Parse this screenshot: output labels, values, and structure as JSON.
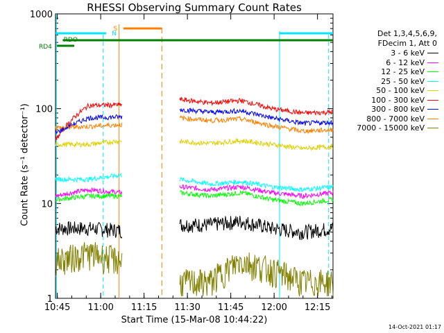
{
  "title": "RHESSI Observing Summary Count Rates",
  "xlabel": "Start Time (15-Mar-08 10:44:22)",
  "ylabel": "Count Rate (s⁻¹ detector⁻¹)",
  "timestamp": "14-Oct-2021 01:17",
  "legend_header": [
    "Det 1,3,4,5,6,9,",
    "FDecim 1, Att 0"
  ],
  "chart_data": {
    "type": "line",
    "title": "RHESSI Observing Summary Count Rates",
    "xlabel": "Start Time (15-Mar-08 10:44:22)",
    "ylabel": "Count Rate (s⁻¹ detector⁻¹)",
    "x_ticks": [
      "10:45",
      "11:00",
      "11:15",
      "11:30",
      "11:45",
      "12:00",
      "12:15"
    ],
    "y_ticks": [
      "1",
      "10",
      "100",
      "1000"
    ],
    "ylim": [
      1,
      1000
    ],
    "yscale": "log",
    "xlim_minutes_after_10_44_22": [
      0,
      96
    ],
    "flag_labels": [
      "RD4",
      "RDO",
      "N",
      "S"
    ],
    "series": [
      {
        "name": "3 - 6 keV",
        "color": "#000000",
        "seg1": [
          5.5,
          5.5,
          5.2
        ],
        "seg2": [
          6.0,
          6.0,
          6.5,
          5.5,
          5.0,
          5.5
        ]
      },
      {
        "name": "6 - 12 keV",
        "color": "#ff00ff",
        "seg1": [
          12,
          14,
          13
        ],
        "seg2": [
          15,
          14,
          15,
          13,
          12,
          13
        ]
      },
      {
        "name": "12 - 25 keV",
        "color": "#00ff00",
        "seg1": [
          11,
          12,
          12
        ],
        "seg2": [
          13,
          12,
          13,
          11,
          10,
          11
        ]
      },
      {
        "name": "25 - 50 keV",
        "color": "#00ffff",
        "seg1": [
          18,
          18,
          20
        ],
        "seg2": [
          18,
          16,
          17,
          15,
          14,
          15
        ]
      },
      {
        "name": "50 - 100 keV",
        "color": "#e0d000",
        "seg1": [
          42,
          42,
          46
        ],
        "seg2": [
          45,
          43,
          46,
          42,
          38,
          40
        ]
      },
      {
        "name": "100 - 300 keV",
        "color": "#ff0000",
        "seg1": [
          46,
          108,
          110
        ],
        "seg2": [
          125,
          115,
          122,
          100,
          90,
          92
        ]
      },
      {
        "name": "300 - 800 keV",
        "color": "#0000ff",
        "seg1": [
          55,
          80,
          82
        ],
        "seg2": [
          98,
          92,
          95,
          80,
          70,
          72
        ]
      },
      {
        "name": "800 - 7000 keV",
        "color": "#ff8000",
        "seg1": [
          63,
          65,
          68
        ],
        "seg2": [
          80,
          75,
          78,
          66,
          58,
          60
        ]
      },
      {
        "name": "7000 - 15000 keV",
        "color": "#808000",
        "seg1": [
          2.5,
          3.0,
          2.5
        ],
        "seg2": [
          1.5,
          1.5,
          2.5,
          2.0,
          1.5,
          1.5
        ]
      }
    ],
    "segments_minutes": {
      "seg1": [
        0,
        23
      ],
      "seg2": [
        43,
        96
      ]
    }
  }
}
